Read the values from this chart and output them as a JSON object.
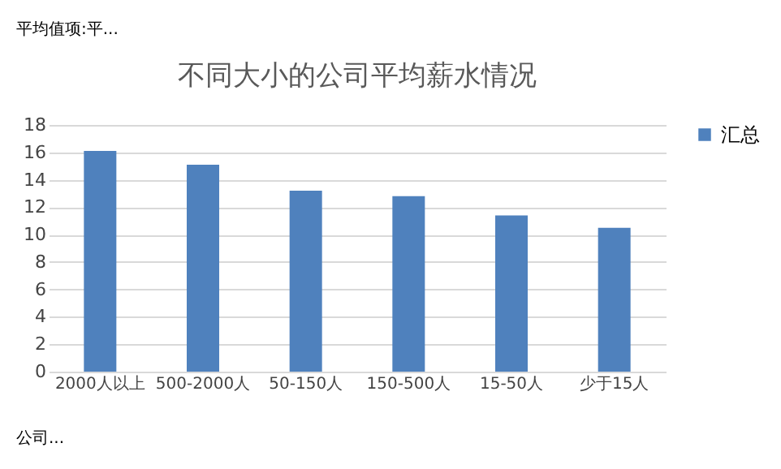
{
  "chart_data": {
    "type": "bar",
    "title": "不同大小的公司平均薪水情况",
    "categories": [
      "2000人以上",
      "500-2000人",
      "50-150人",
      "150-500人",
      "15-50人",
      "少于15人"
    ],
    "series": [
      {
        "name": "汇总",
        "color": "#4f81bd",
        "values": [
          16.1,
          15.1,
          13.2,
          12.8,
          11.4,
          10.5
        ]
      }
    ],
    "ylim": [
      0,
      18
    ],
    "yticks": [
      0,
      2,
      4,
      6,
      8,
      10,
      12,
      14,
      16,
      18
    ],
    "grid": "y",
    "legend": "right",
    "annotations": [
      "平均值项:平...",
      "公司..."
    ]
  }
}
